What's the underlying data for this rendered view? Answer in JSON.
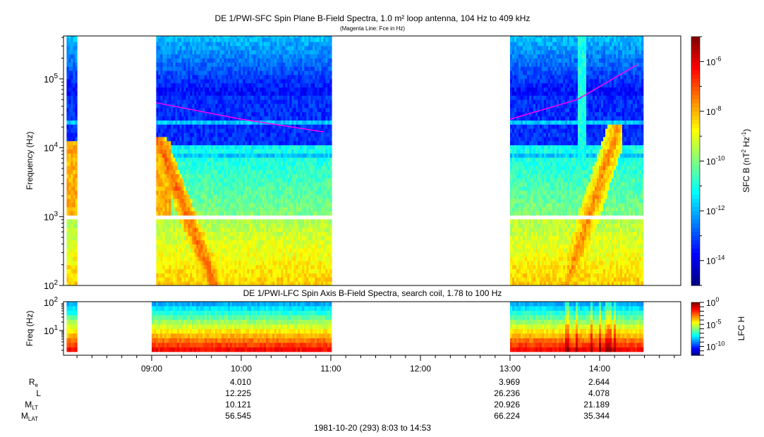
{
  "chart_data": [
    {
      "type": "heatmap",
      "title": "DE 1/PWI-SFC  Spin Plane B-Field Spectra, 1.0 m² loop antenna, 104 Hz to 409 kHz",
      "subtitle": "(Magenta Line: Fce in Hz)",
      "ylabel": "Frequency (Hz)",
      "yscale": "log",
      "ylim": [
        100,
        409000
      ],
      "yticks": [
        {
          "v": 100,
          "label": "10",
          "exp": "2"
        },
        {
          "v": 1000,
          "label": "10",
          "exp": "3"
        },
        {
          "v": 10000,
          "label": "10",
          "exp": "4"
        },
        {
          "v": 100000,
          "label": "10",
          "exp": "5"
        }
      ],
      "data_intervals": [
        [
          "08:03",
          "08:10"
        ],
        [
          "09:03",
          "11:00"
        ],
        [
          "13:00",
          "14:28"
        ]
      ],
      "fce_line": {
        "color": "#ff00ff",
        "segments": [
          [
            [
              "09:03",
              45000
            ],
            [
              "10:00",
              26000
            ],
            [
              "10:55",
              17000
            ]
          ],
          [
            [
              "13:00",
              26000
            ],
            [
              "13:45",
              50000
            ],
            [
              "14:25",
              160000
            ]
          ]
        ]
      },
      "colorbar": {
        "label": "SFC B (nT",
        "label_sup1": "2",
        "label_mid": " Hz",
        "label_sup2": "-1",
        "label_end": ")",
        "scale": "log",
        "range": [
          1e-15,
          1e-05
        ],
        "colormap": "jet",
        "ticks": [
          {
            "v": -6,
            "label": "10",
            "exp": "-6"
          },
          {
            "v": -8,
            "label": "10",
            "exp": "-8"
          },
          {
            "v": -10,
            "label": "10",
            "exp": "-10"
          },
          {
            "v": -12,
            "label": "10",
            "exp": "-12"
          },
          {
            "v": -14,
            "label": "10",
            "exp": "-14"
          }
        ]
      }
    },
    {
      "type": "heatmap",
      "title": "DE 1/PWI-LFC  Spin Axis B-Field Spectra, search coil, 1.78 to 100 Hz",
      "ylabel": "Freq (Hz)",
      "yscale": "log",
      "ylim": [
        1.78,
        100
      ],
      "yticks": [
        {
          "v": 10,
          "label": "10",
          "exp": "1"
        },
        {
          "v": 100,
          "label": "10",
          "exp": "2"
        }
      ],
      "data_intervals": [
        [
          "08:03",
          "08:10"
        ],
        [
          "09:00",
          "11:00"
        ],
        [
          "13:00",
          "14:28"
        ]
      ],
      "colorbar": {
        "label": "LFC H",
        "scale": "log",
        "range": [
          1e-12,
          1
        ],
        "colormap": "jet",
        "ticks": [
          {
            "v": 0,
            "label": "10",
            "exp": "0"
          },
          {
            "v": -5,
            "label": "10",
            "exp": "-5"
          },
          {
            "v": -10,
            "label": "10",
            "exp": "-10"
          }
        ]
      }
    }
  ],
  "time_axis": {
    "ticks": [
      "09:00",
      "10:00",
      "11:00",
      "12:00",
      "13:00",
      "14:00"
    ],
    "range": [
      "08:03",
      "14:53"
    ],
    "footer": "1981-10-20 (293) 8:03 to 14:53"
  },
  "ephemeris": {
    "rows": [
      {
        "label": "R",
        "sub": "e",
        "values": [
          "4.010",
          "3.969",
          "2.644"
        ]
      },
      {
        "label": "L",
        "sub": "",
        "values": [
          "12.225",
          "26.236",
          "4.078"
        ]
      },
      {
        "label": "M",
        "sub": "LT",
        "values": [
          "10.121",
          "20.926",
          "21.189"
        ]
      },
      {
        "label": "M",
        "sub": "LAT",
        "values": [
          "56.545",
          "66.224",
          "35.344"
        ]
      }
    ],
    "times": [
      "10:00",
      "13:00",
      "14:00"
    ]
  }
}
